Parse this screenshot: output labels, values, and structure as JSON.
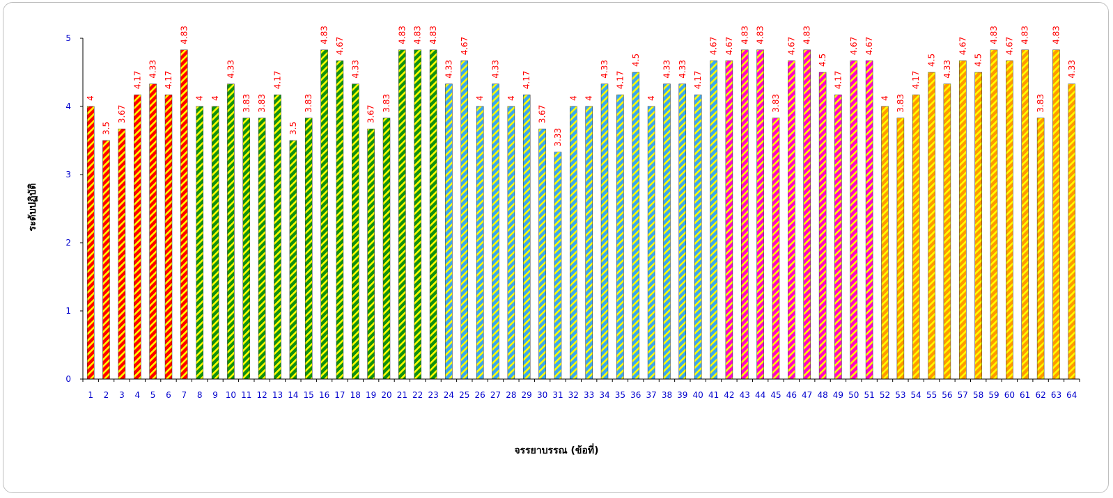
{
  "chart_data": {
    "type": "bar",
    "title": "",
    "xlabel": "จรรยาบรรณ (ข้อที่)",
    "ylabel": "ระดับปฏิบัติ",
    "ylim": [
      0,
      5
    ],
    "yticks": [
      0,
      1,
      2,
      3,
      4,
      5
    ],
    "grid": false,
    "categories": [
      "1",
      "2",
      "3",
      "4",
      "5",
      "6",
      "7",
      "8",
      "9",
      "10",
      "11",
      "12",
      "13",
      "14",
      "15",
      "16",
      "17",
      "18",
      "19",
      "20",
      "21",
      "22",
      "23",
      "24",
      "25",
      "26",
      "27",
      "28",
      "29",
      "30",
      "31",
      "32",
      "33",
      "34",
      "35",
      "36",
      "37",
      "38",
      "39",
      "40",
      "41",
      "42",
      "43",
      "44",
      "45",
      "46",
      "47",
      "48",
      "49",
      "50",
      "51",
      "52",
      "53",
      "54",
      "55",
      "56",
      "57",
      "58",
      "59",
      "60",
      "61",
      "62",
      "63",
      "64"
    ],
    "values": [
      4,
      3.5,
      3.67,
      4.17,
      4.33,
      4.17,
      4.83,
      4,
      4,
      4.33,
      3.83,
      3.83,
      4.17,
      3.5,
      3.83,
      4.83,
      4.67,
      4.33,
      3.67,
      3.83,
      4.83,
      4.83,
      4.83,
      4.33,
      4.67,
      4,
      4.33,
      4,
      4.17,
      3.67,
      3.33,
      4,
      4,
      4.33,
      4.17,
      4.5,
      4,
      4.33,
      4.33,
      4.17,
      4.67,
      4.67,
      4.83,
      4.83,
      3.83,
      4.67,
      4.83,
      4.5,
      4.17,
      4.67,
      4.67,
      4,
      3.83,
      4.17,
      4.5,
      4.33,
      4.67,
      4.5,
      4.83,
      4.67,
      4.83,
      3.83,
      4.83,
      4.33
    ],
    "groups": [
      {
        "from": 1,
        "to": 7,
        "color": "#ff0000",
        "stripe": "#ffff00"
      },
      {
        "from": 8,
        "to": 23,
        "color": "#109010",
        "stripe": "#ffff00"
      },
      {
        "from": 24,
        "to": 41,
        "color": "#3aa6f0",
        "stripe": "#ffff00"
      },
      {
        "from": 42,
        "to": 51,
        "color": "#ff00cc",
        "stripe": "#ffff00"
      },
      {
        "from": 52,
        "to": 64,
        "color": "#ff9900",
        "stripe": "#ffff00"
      }
    ],
    "colors": {
      "axis": "#000000",
      "tick_label": "#0000cc",
      "data_label": "#ff0000",
      "frame": "#bfbfbf"
    }
  }
}
